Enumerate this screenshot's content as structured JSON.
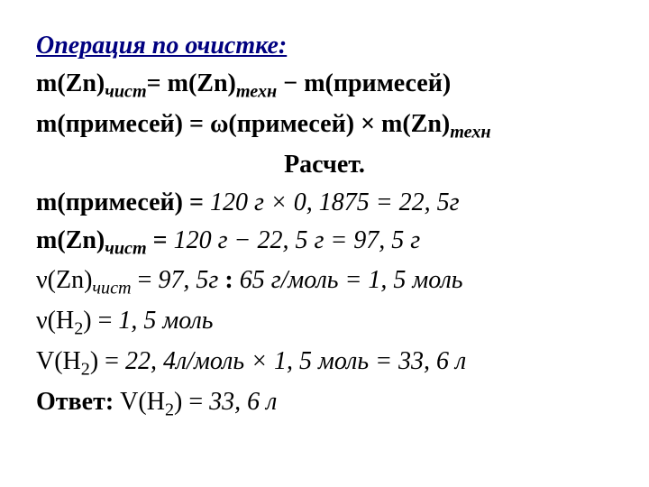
{
  "heading": "Операция по очистке:",
  "eq1_lhs_var": "m(Zn)",
  "eq1_lhs_sub": "чист",
  "eq1_eq": "= ",
  "eq1_rhs_a_var": "m(Zn)",
  "eq1_rhs_a_sub": "техн",
  "eq1_minus": " − ",
  "eq1_rhs_b": "m(примесей)",
  "eq2_lhs": "m(примесей) = ",
  "eq2_omega": "ω",
  "eq2_rhs": "(примесей) × m(Zn)",
  "eq2_sub": "техн",
  "calc_title": "Расчет.",
  "calc1_lhs": "m(примесей) = ",
  "calc1_rhs": "120 г × 0, 1875 = 22, 5г",
  "calc2_lhs_var": "m(Zn)",
  "calc2_lhs_sub": "чист",
  "calc2_eq": " = ",
  "calc2_rhs": "120 г − 22, 5 г = 97, 5 г",
  "calc3_lhs_var": "ν(Zn)",
  "calc3_lhs_sub": "чист",
  "calc3_eq": " = ",
  "calc3_rhs_a": "97, 5г",
  "calc3_colon": " : ",
  "calc3_rhs_b": "65 г/моль = 1, 5 моль",
  "calc4_lhs": "ν(H",
  "calc4_sub": "2",
  "calc4_rhs": ") = ",
  "calc4_val": "1, 5 моль",
  "calc5_lhs": "V(H",
  "calc5_sub": "2",
  "calc5_rhs": ") = ",
  "calc5_val": "22, 4л/моль × 1, 5 моль = 33, 6 л",
  "answer_label": "Ответ: ",
  "answer_var": "V(H",
  "answer_sub": "2",
  "answer_end": ") = ",
  "answer_val": "33, 6 л"
}
